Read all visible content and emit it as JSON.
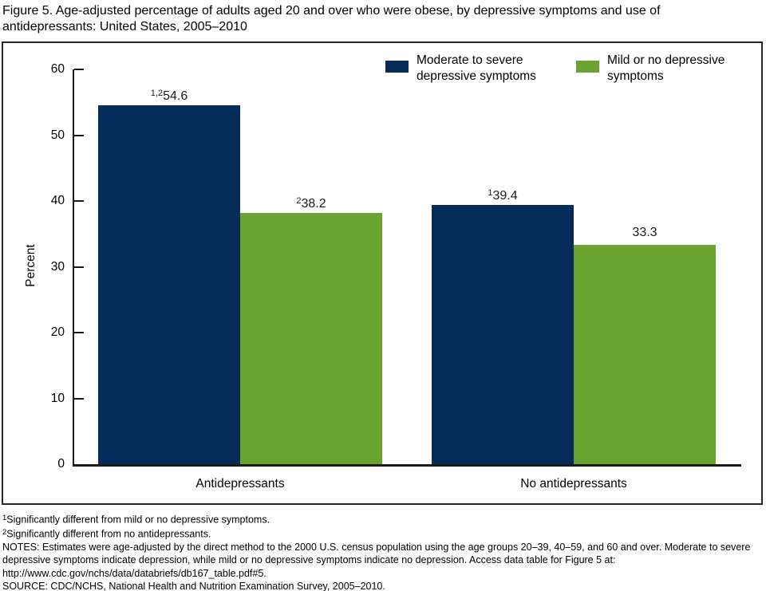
{
  "title": "Figure 5. Age-adjusted percentage of adults aged 20 and over who were obese, by depressive symptoms and use of antidepressants: United States, 2005–2010",
  "chart_data": {
    "type": "bar",
    "title": "Figure 5. Age-adjusted percentage of adults aged 20 and over who were obese, by depressive symptoms and use of antidepressants: United States, 2005–2010",
    "categories": [
      "Antidepressants",
      "No antidepressants"
    ],
    "series": [
      {
        "name": "Moderate to severe depressive symptoms",
        "legend_label": "Moderate to severe\ndepressive symptoms",
        "color": "#062d5a",
        "values": [
          54.6,
          39.4
        ],
        "label_prefixes": [
          "1,2",
          "1"
        ]
      },
      {
        "name": "Mild or no depressive symptoms",
        "legend_label": "Mild or no depressive\nsymptoms",
        "color": "#6aa32f",
        "values": [
          38.2,
          33.3
        ],
        "label_prefixes": [
          "2",
          ""
        ]
      }
    ],
    "xlabel": "",
    "ylabel": "Percent",
    "ylim": [
      0,
      60
    ],
    "yticks": [
      0,
      10,
      20,
      30,
      40,
      50,
      60
    ],
    "grid": false,
    "legend_position": "top-right",
    "value_label_decimals": 1
  },
  "footnotes": [
    {
      "sup": "1",
      "text": "Significantly different from mild or no depressive symptoms."
    },
    {
      "sup": "2",
      "text": "Significantly different from no antidepressants."
    },
    {
      "sup": "",
      "text": "NOTES: Estimates were age-adjusted by the direct method to the 2000 U.S. census population using the age groups 20–39, 40–59, and 60 and over. Moderate to severe depressive symptoms indicate depression, while mild or no depressive symptoms indicate no depression. Access data table for Figure 5 at: http://www.cdc.gov/nchs/data/databriefs/db167_table.pdf#5."
    },
    {
      "sup": "",
      "text": "SOURCE: CDC/NCHS, National Health and Nutrition Examination Survey, 2005–2010."
    }
  ]
}
